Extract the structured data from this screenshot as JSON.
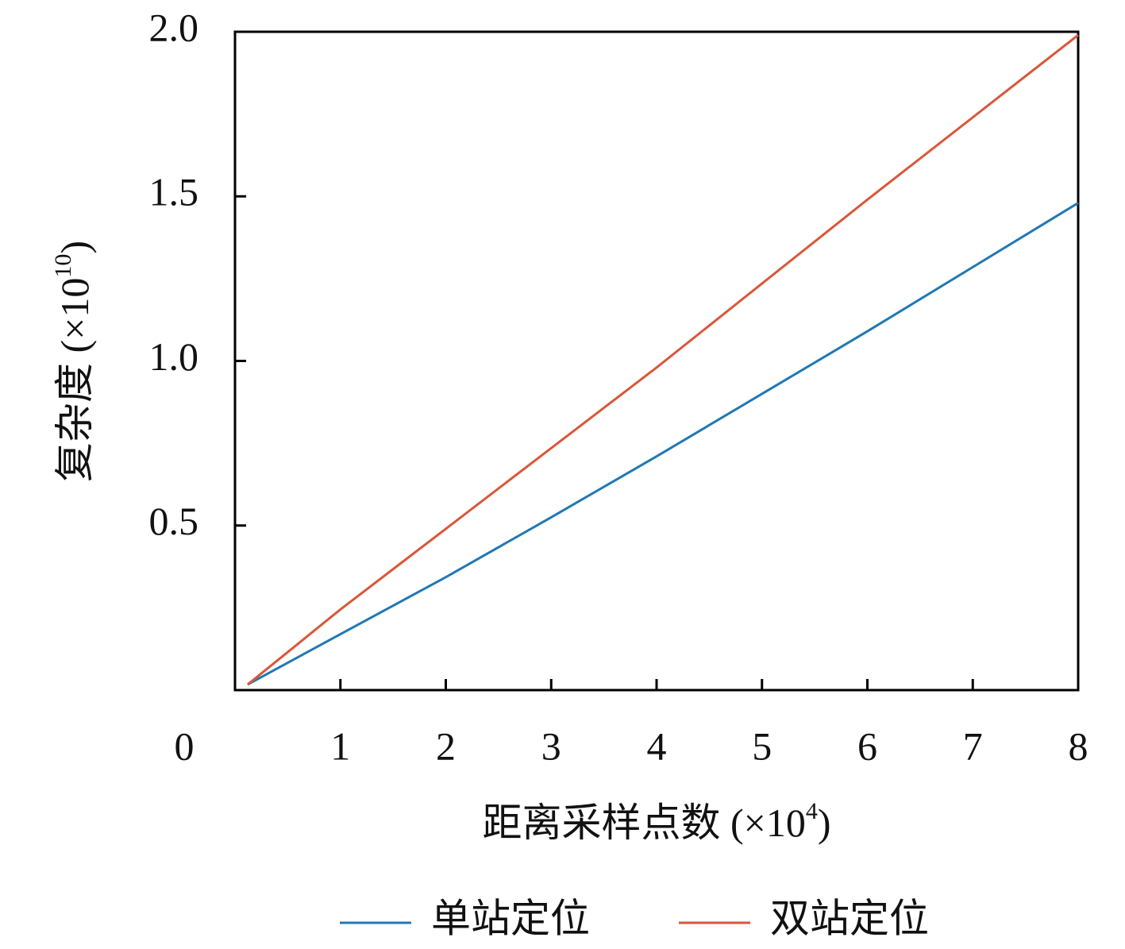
{
  "chart_data": {
    "type": "line",
    "xlabel": {
      "text": "距离采样点数 (×10",
      "sup": "4",
      "end": ")"
    },
    "ylabel": {
      "text": "复杂度 (×10",
      "sup": "10",
      "end": ")"
    },
    "x": [
      0.12,
      1,
      2,
      3,
      4,
      5,
      6,
      7,
      8
    ],
    "series": [
      {
        "name": "单站定位",
        "color": "#1f78b4",
        "values": [
          0.017,
          0.17,
          0.343,
          0.525,
          0.71,
          0.9,
          1.09,
          1.285,
          1.48
        ]
      },
      {
        "name": "双站定位",
        "color": "#d9573a",
        "values": [
          0.017,
          0.245,
          0.49,
          0.735,
          0.98,
          1.235,
          1.49,
          1.74,
          1.99
        ]
      }
    ],
    "xlim": [
      0,
      8
    ],
    "xticks": [
      0,
      1,
      2,
      3,
      4,
      5,
      6,
      7,
      8
    ],
    "ylim": [
      0,
      2
    ],
    "yticks": [
      0.5,
      {
        "value": 1,
        "label": "1.0"
      },
      1.5,
      {
        "value": 2,
        "label": "2.0"
      }
    ],
    "legend": "bottom",
    "grid": false
  }
}
